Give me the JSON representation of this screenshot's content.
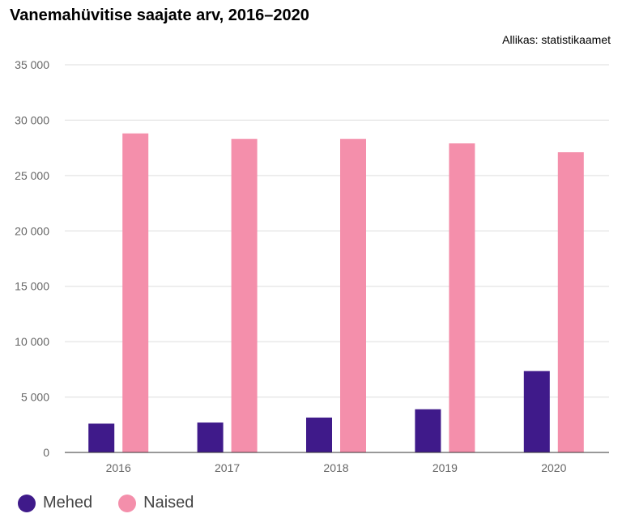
{
  "chart_data": {
    "type": "bar",
    "title": "Vanemahüvitise saajate arv, 2016–2020",
    "source": "Allikas: statistikaamet",
    "categories": [
      "2016",
      "2017",
      "2018",
      "2019",
      "2020"
    ],
    "series": [
      {
        "name": "Mehed",
        "color": "#3f1a8a",
        "values": [
          2600,
          2700,
          3150,
          3900,
          7350
        ]
      },
      {
        "name": "Naised",
        "color": "#f48fab",
        "values": [
          28800,
          28300,
          28300,
          27900,
          27100
        ]
      }
    ],
    "ylim": [
      0,
      35000
    ],
    "yticks": [
      0,
      5000,
      10000,
      15000,
      20000,
      25000,
      30000,
      35000
    ],
    "ytick_labels": [
      "0",
      "5 000",
      "10 000",
      "15 000",
      "20 000",
      "25 000",
      "30 000",
      "35 000"
    ],
    "grid": true,
    "legend_position": "bottom-left"
  }
}
